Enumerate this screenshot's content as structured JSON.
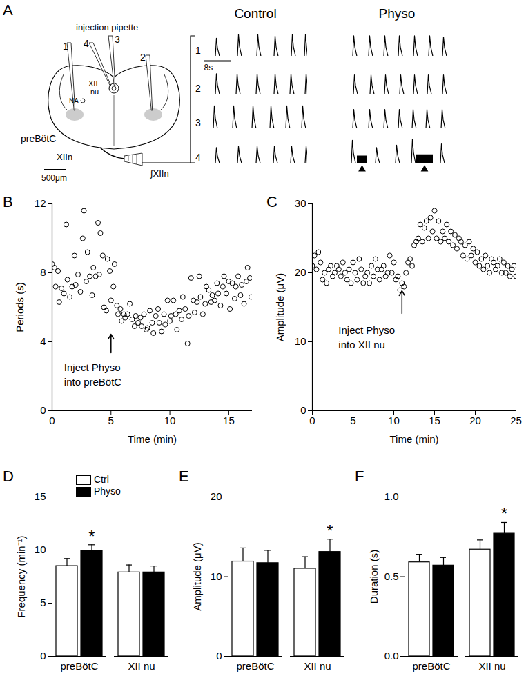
{
  "chart_data": [
    {
      "panel": "A",
      "type": "traces",
      "xlim": [
        0,
        30
      ],
      "ylim": [
        0,
        1
      ],
      "tick_labels": false,
      "marker": "triangle",
      "scale_bar": {
        "value": 8,
        "label": "8s"
      },
      "row_labels": [
        "1",
        "2",
        "3",
        "4"
      ],
      "series": [
        {
          "name": "Control",
          "rows": [
            {
              "bursts": [
                [
                  3.6,
                  0.75
                ],
                [
                  10,
                  0.9
                ],
                [
                  15.6,
                  0.9
                ],
                [
                  20.6,
                  0.85
                ],
                [
                  25.6,
                  0.9
                ],
                [
                  29.4,
                  0.9
                ]
              ],
              "tonic": []
            },
            {
              "bursts": [
                [
                  3.6,
                  0.85
                ],
                [
                  9.6,
                  0.85
                ],
                [
                  15.4,
                  0.85
                ],
                [
                  20.6,
                  0.85
                ],
                [
                  25.2,
                  0.85
                ],
                [
                  29.6,
                  0.85
                ]
              ],
              "tonic": []
            },
            {
              "bursts": [
                [
                  3,
                  0.95
                ],
                [
                  8.6,
                  0.95
                ],
                [
                  14.2,
                  0.95
                ],
                [
                  19.4,
                  0.95
                ],
                [
                  24,
                  0.95
                ],
                [
                  28.6,
                  0.95
                ]
              ],
              "tonic": []
            },
            {
              "bursts": [
                [
                  3.6,
                  0.65
                ],
                [
                  10,
                  0.7
                ],
                [
                  15.4,
                  0.7
                ],
                [
                  20.4,
                  0.7
                ],
                [
                  25.4,
                  0.7
                ],
                [
                  29.6,
                  0.7
                ]
              ],
              "tonic": []
            }
          ]
        },
        {
          "name": "Physo",
          "rows": [
            {
              "bursts": [
                [
                  2.4,
                  0.85
                ],
                [
                  7,
                  0.85
                ],
                [
                  11.4,
                  0.85
                ],
                [
                  15.6,
                  0.85
                ],
                [
                  20,
                  0.85
                ],
                [
                  24.4,
                  0.85
                ],
                [
                  28.4,
                  0.8
                ]
              ],
              "tonic": []
            },
            {
              "bursts": [
                [
                  2.6,
                  0.8
                ],
                [
                  7.4,
                  0.8
                ],
                [
                  11.6,
                  0.8
                ],
                [
                  16,
                  0.8
                ],
                [
                  20,
                  0.8
                ],
                [
                  24,
                  0.8
                ],
                [
                  28.4,
                  0.8
                ]
              ],
              "tonic": []
            },
            {
              "bursts": [
                [
                  2.4,
                  0.8
                ],
                [
                  7,
                  0.8
                ],
                [
                  11.4,
                  0.8
                ],
                [
                  15.6,
                  0.8
                ],
                [
                  19.6,
                  0.8
                ],
                [
                  23.6,
                  0.8
                ],
                [
                  28,
                  0.8
                ]
              ],
              "tonic": []
            },
            {
              "bursts": [
                [
                  2,
                  0.95
                ],
                [
                  9,
                  0.65
                ],
                [
                  14.8,
                  0.75
                ],
                [
                  19.4,
                  1
                ],
                [
                  27.8,
                  0.8
                ]
              ],
              "tonic": [
                [
                  3.4,
                  6.2,
                  0.3
                ],
                [
                  20.4,
                  25.4,
                  0.35
                ]
              ]
            }
          ]
        }
      ]
    },
    {
      "panel": "B",
      "type": "scatter",
      "marker": "circle",
      "x_label": "Time (min)",
      "y_label": "Periods (s)",
      "xlim": [
        0,
        17
      ],
      "ylim": [
        0,
        12
      ],
      "xticks": [
        0,
        5,
        10,
        15
      ],
      "yticks": [
        0,
        4,
        8,
        12
      ],
      "annotation": {
        "text": [
          "Inject Physo",
          "into preBötC"
        ],
        "x": 5
      },
      "x": [
        0,
        0.2,
        0.3,
        0.5,
        0.6,
        0.8,
        1.0,
        1.2,
        1.3,
        1.5,
        1.7,
        1.9,
        2.0,
        2.2,
        2.4,
        2.6,
        2.7,
        2.9,
        3.0,
        3.2,
        3.4,
        3.5,
        3.7,
        3.9,
        4.0,
        4.1,
        4.3,
        4.4,
        4.6,
        4.7,
        4.9,
        5.0,
        5.2,
        5.3,
        5.5,
        5.6,
        5.8,
        5.9,
        6.1,
        6.2,
        6.4,
        6.6,
        6.8,
        7.0,
        7.1,
        7.3,
        7.5,
        7.6,
        7.8,
        8.0,
        8.1,
        8.3,
        8.5,
        8.6,
        8.8,
        9.0,
        9.1,
        9.3,
        9.5,
        9.6,
        9.8,
        10.0,
        10.1,
        10.3,
        10.5,
        10.6,
        10.8,
        11.0,
        11.1,
        11.3,
        11.5,
        11.6,
        11.8,
        12.0,
        12.1,
        12.3,
        12.5,
        12.6,
        12.8,
        13.0,
        13.1,
        13.3,
        13.5,
        13.6,
        13.8,
        14.0,
        14.1,
        14.3,
        14.5,
        14.6,
        14.8,
        15.0,
        15.1,
        15.3,
        15.5,
        15.6,
        15.8,
        16.0,
        16.1,
        16.3,
        16.5,
        16.6,
        16.8,
        16.9
      ],
      "values": [
        8.5,
        8.3,
        7.2,
        8.1,
        6.3,
        7.1,
        6.8,
        10.8,
        7.6,
        6.6,
        7.2,
        9.0,
        7.3,
        7.9,
        6.9,
        10.0,
        11.6,
        7.5,
        9.2,
        7.8,
        6.7,
        8.3,
        7.8,
        10.9,
        7.9,
        10.3,
        9.0,
        6.0,
        5.8,
        8.8,
        8.1,
        6.4,
        7.2,
        8.5,
        6.1,
        5.6,
        5.9,
        5.2,
        5.6,
        5.4,
        5.6,
        6.2,
        5.3,
        4.9,
        5.5,
        5.1,
        5.4,
        4.9,
        5.6,
        4.7,
        4.8,
        5.8,
        5.1,
        4.5,
        5.5,
        5.9,
        5.1,
        4.6,
        5.6,
        5.0,
        6.4,
        5.2,
        5.5,
        6.4,
        5.6,
        4.7,
        5.8,
        5.3,
        6.6,
        5.9,
        3.9,
        5.5,
        7.7,
        6.4,
        5.7,
        6.3,
        7.8,
        6.6,
        5.6,
        6.2,
        7.2,
        7.0,
        6.3,
        6.7,
        6.4,
        7.4,
        6.8,
        6.1,
        7.2,
        7.8,
        6.8,
        7.5,
        5.9,
        7.4,
        6.5,
        7.2,
        7.8,
        6.7,
        7.3,
        6.2,
        7.5,
        8.3,
        7.7,
        6.6
      ]
    },
    {
      "panel": "C",
      "type": "scatter",
      "marker": "circle",
      "x_label": "Time (min)",
      "y_label": "Amplitude (μV)",
      "xlim": [
        0,
        25
      ],
      "ylim": [
        0,
        30
      ],
      "xticks": [
        0,
        5,
        10,
        15,
        20,
        25
      ],
      "yticks": [
        0,
        10,
        20,
        30
      ],
      "annotation": {
        "text": [
          "Inject Physo",
          "into XII nu"
        ],
        "x": 11
      },
      "x": [
        0,
        0.25,
        0.5,
        0.75,
        1,
        1.25,
        1.5,
        1.75,
        2,
        2.25,
        2.5,
        2.75,
        3,
        3.25,
        3.5,
        3.75,
        4,
        4.25,
        4.5,
        4.75,
        5,
        5.25,
        5.5,
        5.75,
        6,
        6.25,
        6.5,
        6.75,
        7,
        7.25,
        7.5,
        7.75,
        8,
        8.25,
        8.5,
        8.75,
        9,
        9.25,
        9.5,
        9.75,
        10,
        10.25,
        10.5,
        10.75,
        11,
        11.25,
        11.5,
        11.75,
        12,
        12.25,
        12.5,
        12.75,
        13,
        13.25,
        13.5,
        13.75,
        14,
        14.25,
        14.5,
        14.75,
        15,
        15.25,
        15.5,
        15.75,
        16,
        16.25,
        16.5,
        16.75,
        17,
        17.25,
        17.5,
        17.75,
        18,
        18.25,
        18.5,
        18.75,
        19,
        19.25,
        19.5,
        19.75,
        20,
        20.25,
        20.5,
        20.75,
        21,
        21.25,
        21.5,
        21.75,
        22,
        22.25,
        22.5,
        22.75,
        23,
        23.25,
        23.5,
        23.75,
        24,
        24.25,
        24.5,
        24.75,
        25
      ],
      "values": [
        21,
        22.5,
        20.5,
        23,
        21.5,
        19,
        20,
        18.5,
        20.5,
        21,
        19.5,
        20,
        21,
        20.5,
        19.5,
        21.5,
        20,
        19,
        20.5,
        18.5,
        21.5,
        20,
        19,
        22,
        20.5,
        18.5,
        19.5,
        20,
        18.5,
        21,
        19.5,
        22,
        20.5,
        19,
        20.5,
        21,
        19.5,
        20,
        22.5,
        20,
        21.5,
        19,
        19.5,
        17.5,
        18.5,
        18,
        20,
        21.5,
        22,
        21,
        24,
        24.5,
        25,
        27,
        24.5,
        26.5,
        27.5,
        25,
        28,
        26,
        29,
        25,
        27.5,
        24.5,
        26,
        25,
        27,
        24.5,
        26,
        24,
        25.5,
        23.5,
        25,
        24.5,
        22.5,
        24,
        22,
        24.5,
        22.5,
        23.5,
        21.5,
        23,
        21,
        22,
        20.5,
        22.5,
        21,
        20,
        22,
        21.5,
        20.5,
        21,
        22,
        20,
        21.5,
        20,
        21,
        19.5,
        20.5,
        21,
        19.5
      ]
    },
    {
      "panel": "D",
      "type": "bar",
      "y_label": "Frequency (min⁻¹)",
      "legend": "top-left",
      "annotation": "*",
      "categories": [
        "preBötC",
        "XII nu"
      ],
      "ylim": [
        0,
        15
      ],
      "yticks": [
        0,
        5,
        10,
        15
      ],
      "series": [
        {
          "name": "Ctrl",
          "color": "white",
          "values": [
            8.5,
            7.9
          ],
          "errors": [
            0.7,
            0.7
          ],
          "significant": [
            false,
            false
          ]
        },
        {
          "name": "Physo",
          "color": "black",
          "values": [
            9.9,
            7.9
          ],
          "errors": [
            0.6,
            0.6
          ],
          "significant": [
            true,
            false
          ]
        }
      ]
    },
    {
      "panel": "E",
      "type": "bar",
      "y_label": "Amplitude (μV)",
      "annotation": "*",
      "categories": [
        "preBötC",
        "XII nu"
      ],
      "ylim": [
        0,
        20
      ],
      "yticks": [
        0,
        10,
        20
      ],
      "series": [
        {
          "name": "Ctrl",
          "color": "white",
          "values": [
            11.9,
            11.0
          ],
          "errors": [
            1.7,
            1.5
          ],
          "significant": [
            false,
            false
          ]
        },
        {
          "name": "Physo",
          "color": "black",
          "values": [
            11.7,
            13.1
          ],
          "errors": [
            1.6,
            1.6
          ],
          "significant": [
            false,
            true
          ]
        }
      ]
    },
    {
      "panel": "F",
      "type": "bar",
      "y_label": "Duration (s)",
      "annotation": "*",
      "categories": [
        "preBötC",
        "XII nu"
      ],
      "ylim": [
        0,
        1
      ],
      "yticks": [
        {
          "value": 0,
          "label": "0.0"
        },
        {
          "value": 0.5,
          "label": "0.5"
        },
        {
          "value": 1,
          "label": "1.0"
        }
      ],
      "series": [
        {
          "name": "Ctrl",
          "color": "white",
          "values": [
            0.59,
            0.67
          ],
          "errors": [
            0.05,
            0.06
          ],
          "significant": [
            false,
            false
          ]
        },
        {
          "name": "Physo",
          "color": "black",
          "values": [
            0.57,
            0.77
          ],
          "errors": [
            0.05,
            0.07
          ],
          "significant": [
            false,
            true
          ]
        }
      ]
    }
  ],
  "diagram": {
    "injection_label": "injection pipette",
    "pipettes": [
      "1",
      "2",
      "3",
      "4"
    ],
    "nucleus": [
      "XII",
      "nu"
    ],
    "na": "NA",
    "prebotc": "preBötC",
    "nerve": "XIIn",
    "scale_bar": {
      "value": 500,
      "label": "500μm"
    },
    "recording": "∫XIIn"
  }
}
